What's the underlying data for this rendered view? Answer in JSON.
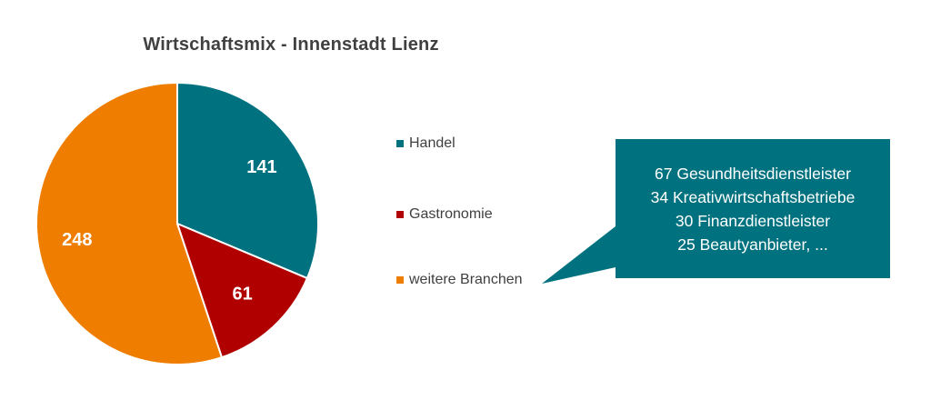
{
  "chart_data": {
    "type": "pie",
    "title": "Wirtschaftsmix - Innenstadt Lienz",
    "categories": [
      "Handel",
      "Gastronomie",
      "weitere Branchen"
    ],
    "values": [
      141,
      61,
      248
    ],
    "data_labels": [
      "141",
      "61",
      "248"
    ],
    "colors": [
      "#00727f",
      "#b00000",
      "#ef7d00"
    ],
    "legend_position": "right",
    "start_angle_deg": 0,
    "direction": "clockwise"
  },
  "callout": {
    "lines": [
      "67 Gesundheitsdienstleister",
      "34 Kreativwirtschaftsbetriebe",
      "30 Finanzdienstleister",
      "25 Beautyanbieter, ..."
    ],
    "color": "#00727f"
  }
}
